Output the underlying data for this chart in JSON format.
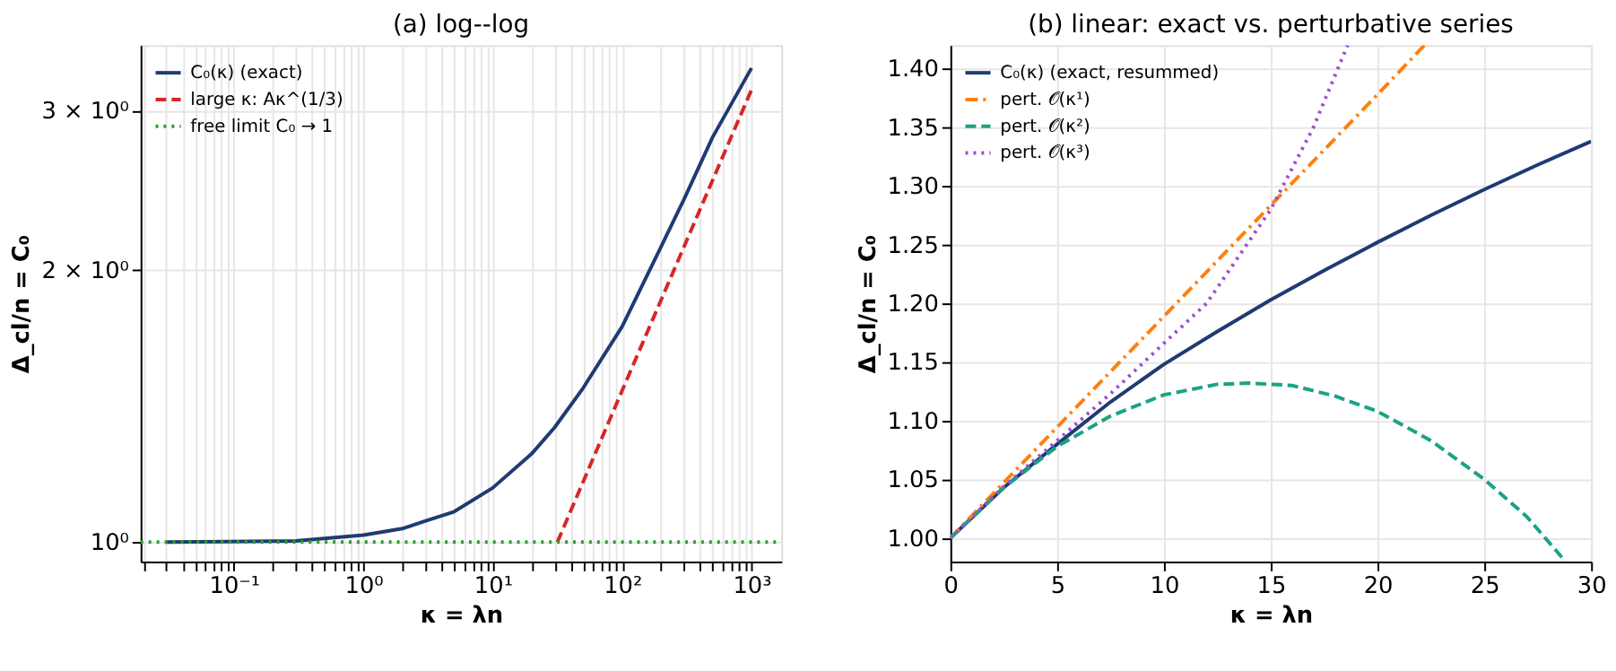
{
  "chart_data": [
    {
      "type": "line",
      "title": "(a) log--log",
      "xlabel": "κ = λn",
      "ylabel": "Δ_cl/n = C₀",
      "log": "xy",
      "grid": true,
      "legend": "top left",
      "xlim": [
        0.019,
        1700
      ],
      "ylim": [
        0.952,
        3.54
      ],
      "xticks": [
        {
          "value": 0.02,
          "label": null
        },
        {
          "value": 0.03,
          "label": null
        },
        {
          "value": 0.04,
          "label": null
        },
        {
          "value": 0.05,
          "label": null
        },
        {
          "value": 0.06,
          "label": null
        },
        {
          "value": 0.07,
          "label": null
        },
        {
          "value": 0.08,
          "label": null
        },
        {
          "value": 0.09,
          "label": null
        },
        {
          "value": 0.1,
          "label": "10⁻¹"
        },
        {
          "value": 0.2,
          "label": null
        },
        {
          "value": 0.3,
          "label": null
        },
        {
          "value": 0.4,
          "label": null
        },
        {
          "value": 0.5,
          "label": null
        },
        {
          "value": 0.6,
          "label": null
        },
        {
          "value": 0.7,
          "label": null
        },
        {
          "value": 0.8,
          "label": null
        },
        {
          "value": 0.9,
          "label": null
        },
        {
          "value": 1,
          "label": "10⁰"
        },
        {
          "value": 2,
          "label": null
        },
        {
          "value": 3,
          "label": null
        },
        {
          "value": 4,
          "label": null
        },
        {
          "value": 5,
          "label": null
        },
        {
          "value": 6,
          "label": null
        },
        {
          "value": 7,
          "label": null
        },
        {
          "value": 8,
          "label": null
        },
        {
          "value": 9,
          "label": null
        },
        {
          "value": 10,
          "label": "10¹"
        },
        {
          "value": 20,
          "label": null
        },
        {
          "value": 30,
          "label": null
        },
        {
          "value": 40,
          "label": null
        },
        {
          "value": 50,
          "label": null
        },
        {
          "value": 60,
          "label": null
        },
        {
          "value": 70,
          "label": null
        },
        {
          "value": 80,
          "label": null
        },
        {
          "value": 90,
          "label": null
        },
        {
          "value": 100,
          "label": "10²"
        },
        {
          "value": 200,
          "label": null
        },
        {
          "value": 300,
          "label": null
        },
        {
          "value": 400,
          "label": null
        },
        {
          "value": 500,
          "label": null
        },
        {
          "value": 600,
          "label": null
        },
        {
          "value": 700,
          "label": null
        },
        {
          "value": 800,
          "label": null
        },
        {
          "value": 900,
          "label": null
        },
        {
          "value": 1000,
          "label": "10³"
        }
      ],
      "yticks": [
        {
          "value": 1,
          "label": "10⁰"
        },
        {
          "value": 2,
          "label": "2 × 10⁰"
        },
        {
          "value": 3,
          "label": "3 × 10⁰"
        }
      ],
      "series": [
        {
          "name": "C₀(κ) (exact)",
          "color": "#1f3b73",
          "line_style": "solid",
          "x": [
            0.03,
            0.3,
            1,
            2,
            3,
            5,
            10,
            20,
            30,
            50,
            100,
            200,
            300,
            500,
            1000
          ],
          "values": [
            1.0,
            1.003,
            1.018,
            1.035,
            1.055,
            1.08,
            1.148,
            1.252,
            1.338,
            1.48,
            1.73,
            2.12,
            2.39,
            2.8,
            3.34
          ]
        },
        {
          "name": "large κ: Aκ^(1/3)",
          "color": "#d62728",
          "line_style": "dashed",
          "x": [
            31.6,
            100,
            1000
          ],
          "values": [
            1.0,
            1.47,
            3.16
          ]
        },
        {
          "name": "free limit C₀ → 1",
          "color": "#2ca02c",
          "line_style": "dotted",
          "x": [
            0.019,
            1700
          ],
          "values": [
            1.0,
            1.0
          ]
        }
      ]
    },
    {
      "type": "line",
      "title": "(b) linear: exact vs. perturbative series",
      "xlabel": "κ = λn",
      "ylabel": "Δ_cl/n = C₀",
      "grid": true,
      "legend": "top left",
      "xlim": [
        0,
        30
      ],
      "ylim": [
        0.98,
        1.42
      ],
      "xticks": [
        0,
        5,
        10,
        15,
        20,
        25,
        30
      ],
      "yticks": [
        {
          "value": 1.0,
          "label": "1.00"
        },
        {
          "value": 1.05,
          "label": "1.05"
        },
        {
          "value": 1.1,
          "label": "1.10"
        },
        {
          "value": 1.15,
          "label": "1.15"
        },
        {
          "value": 1.2,
          "label": "1.20"
        },
        {
          "value": 1.25,
          "label": "1.25"
        },
        {
          "value": 1.3,
          "label": "1.30"
        },
        {
          "value": 1.35,
          "label": "1.35"
        },
        {
          "value": 1.4,
          "label": "1.40"
        }
      ],
      "series": [
        {
          "name": "C₀(κ) (exact, resummed)",
          "color": "#1f3b73",
          "line_style": "solid",
          "x": [
            0,
            2.5,
            5,
            7.5,
            10,
            12.5,
            15,
            17.5,
            20,
            22.5,
            25,
            27.5,
            30
          ],
          "values": [
            1.0,
            1.043,
            1.08,
            1.116,
            1.148,
            1.176,
            1.203,
            1.228,
            1.252,
            1.275,
            1.297,
            1.318,
            1.338
          ]
        },
        {
          "name": "pert. 𝒪(κ¹)",
          "color": "#ff7f0e",
          "line_style": "dashdot",
          "x": [
            0,
            10,
            20,
            22.2
          ],
          "values": [
            1.0,
            1.189,
            1.378,
            1.42
          ]
        },
        {
          "name": "pert. 𝒪(κ²)",
          "color": "#1aa385",
          "line_style": "dashed",
          "x": [
            0,
            2.5,
            5,
            7.5,
            10,
            12.5,
            14,
            16,
            18,
            20,
            22.5,
            25,
            27,
            28.8
          ],
          "values": [
            1.0,
            1.043,
            1.078,
            1.104,
            1.122,
            1.131,
            1.132,
            1.13,
            1.121,
            1.108,
            1.083,
            1.05,
            1.018,
            0.98
          ]
        },
        {
          "name": "pert. 𝒪(κ³)",
          "color": "#9b4fd1",
          "line_style": "dotted",
          "x": [
            0,
            2.5,
            5,
            7.5,
            10,
            12,
            15,
            17,
            18.6
          ],
          "values": [
            1.0,
            1.044,
            1.083,
            1.123,
            1.166,
            1.2,
            1.28,
            1.35,
            1.42
          ]
        }
      ]
    }
  ]
}
